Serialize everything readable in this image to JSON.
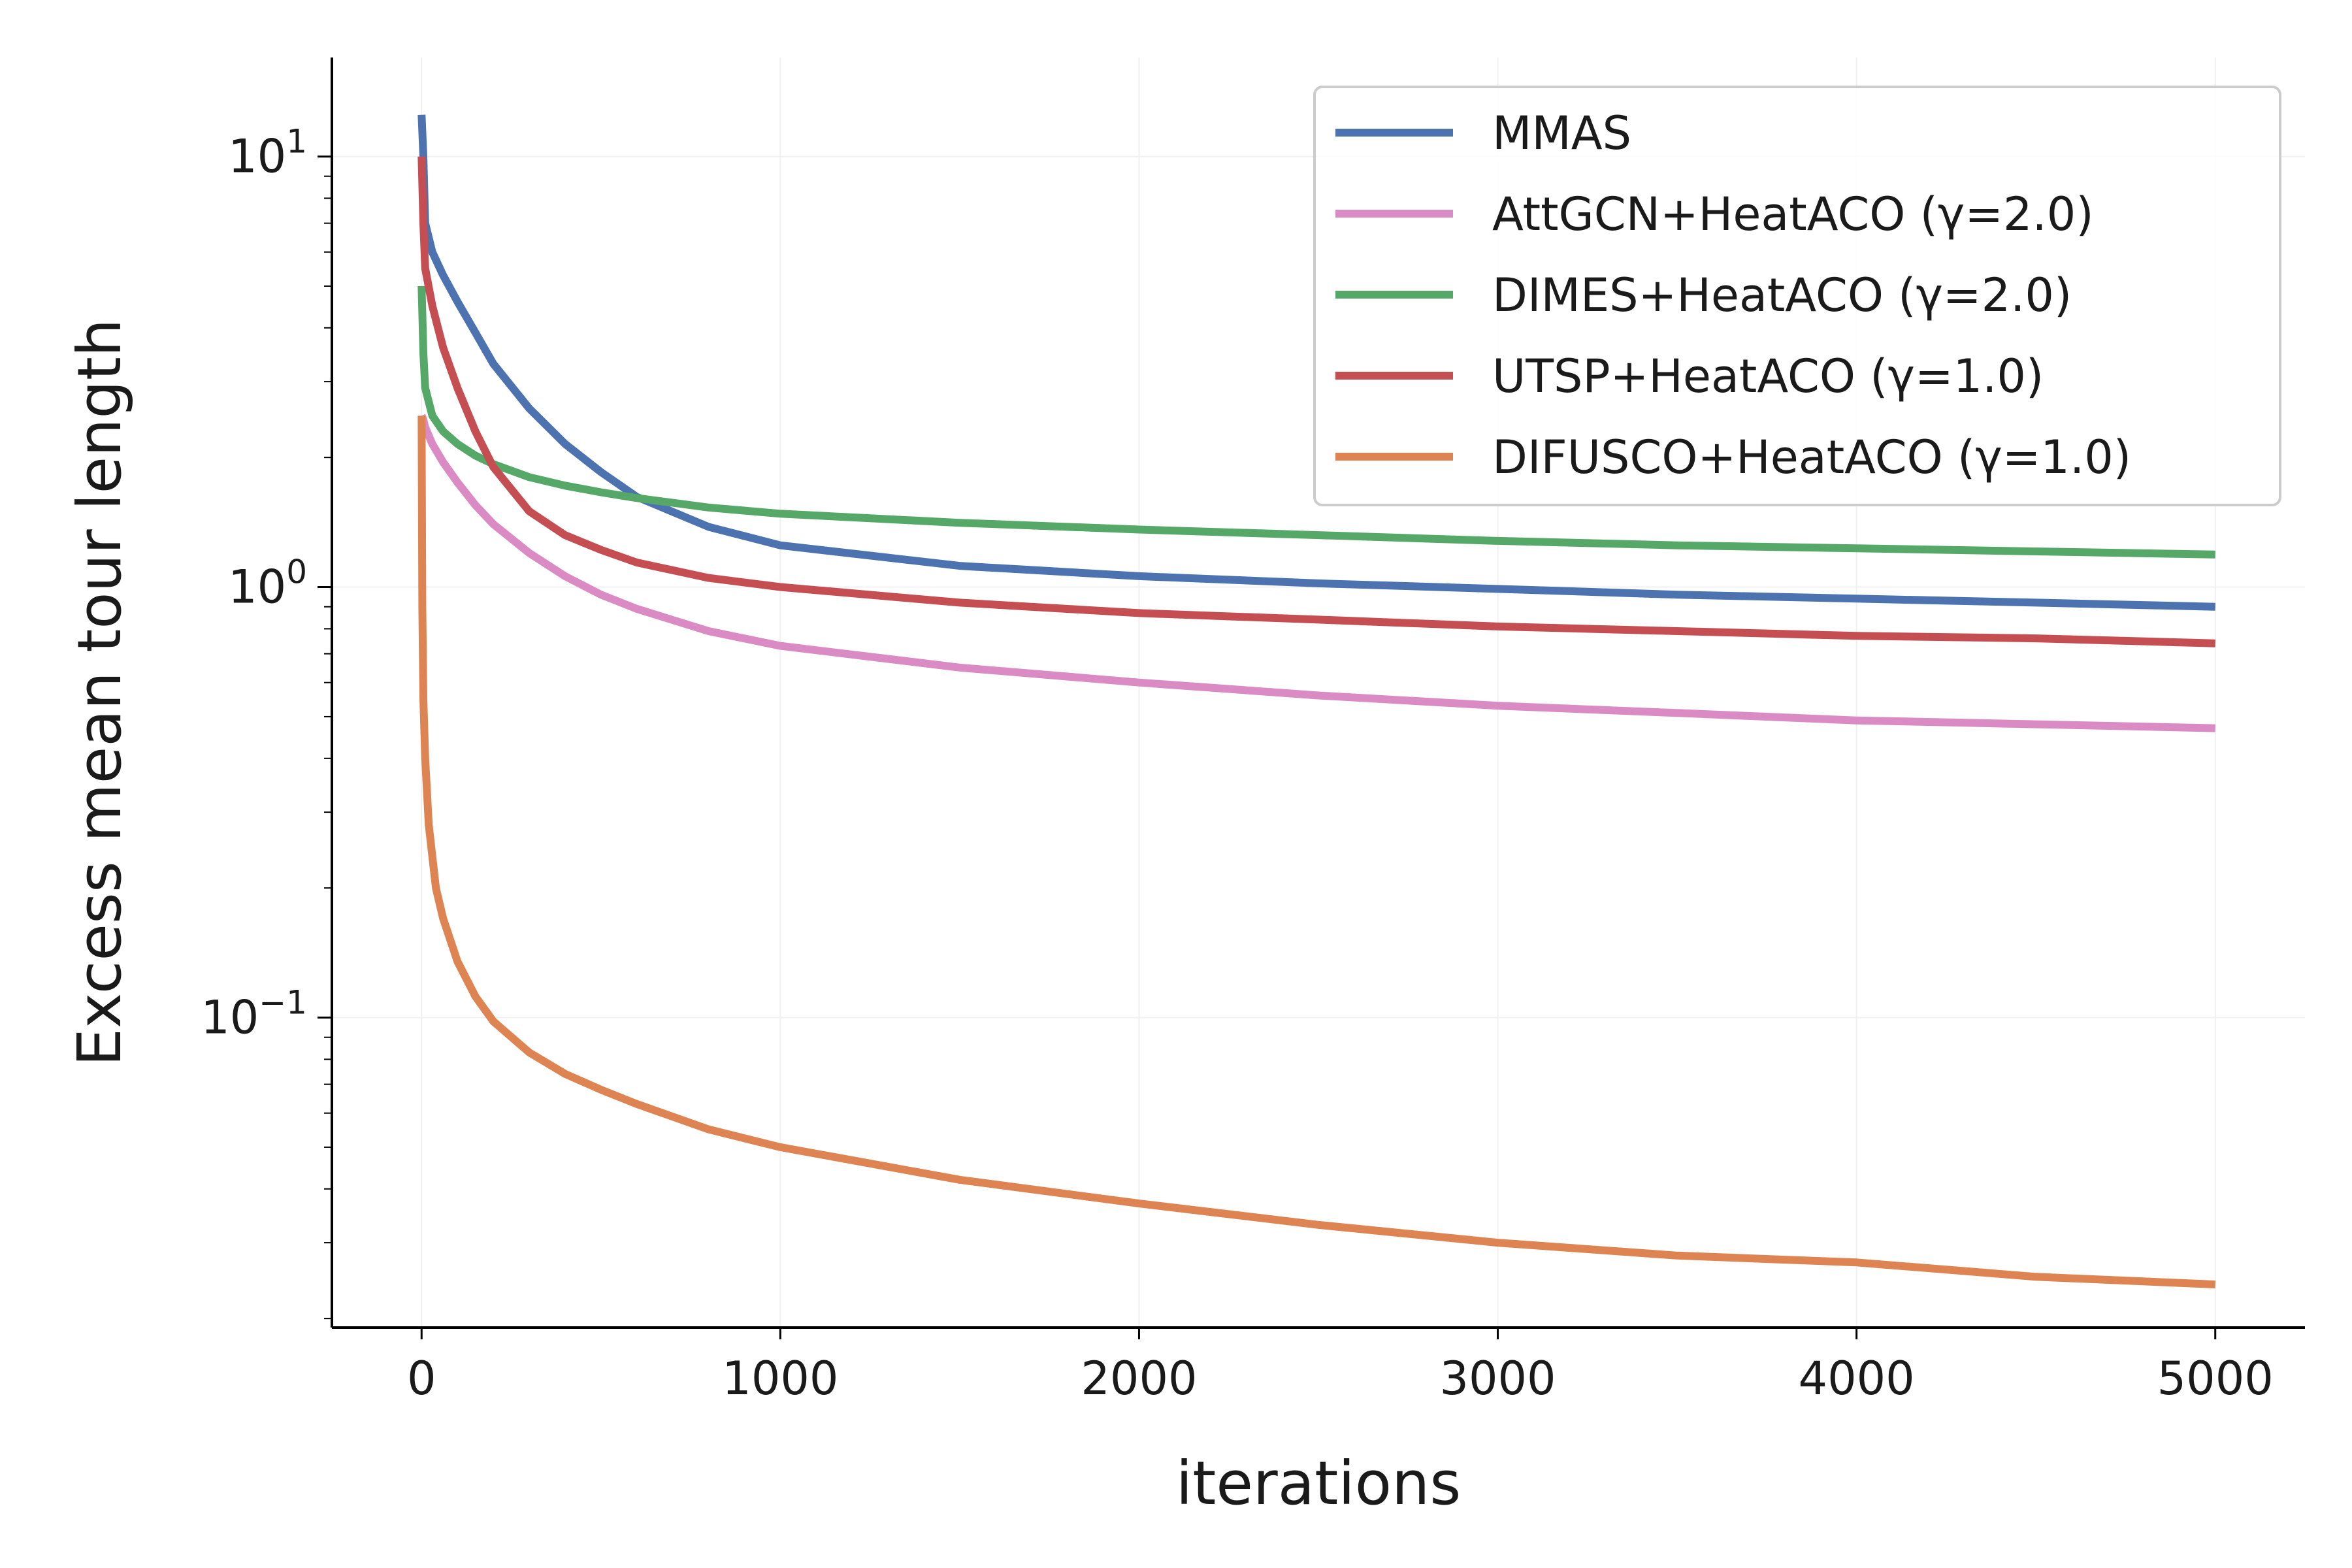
{
  "chart_data": {
    "type": "line",
    "title": "",
    "xlabel": "iterations",
    "ylabel": "Excess mean tour length",
    "xlim": [
      -250,
      5250
    ],
    "ylim_log10": [
      -1.72,
      1.23
    ],
    "yscale": "log",
    "x_ticks": [
      0,
      1000,
      2000,
      3000,
      4000,
      5000
    ],
    "x_tick_labels": [
      "0",
      "1000",
      "2000",
      "3000",
      "4000",
      "5000"
    ],
    "y_ticks": [
      {
        "exp": 1,
        "base": "10",
        "sup": "1"
      },
      {
        "exp": 0,
        "base": "10",
        "sup": "0"
      },
      {
        "exp": -1,
        "base": "10",
        "sup": "−1"
      }
    ],
    "grid": true,
    "legend_position": "top-right",
    "series": [
      {
        "name": "MMAS",
        "color": "#4c72b0",
        "x": [
          0,
          5,
          10,
          30,
          60,
          100,
          150,
          200,
          300,
          400,
          500,
          600,
          800,
          1000,
          1500,
          2000,
          2500,
          3000,
          3500,
          4000,
          4500,
          5000
        ],
        "y": [
          12.5,
          10.0,
          7.0,
          6.0,
          5.3,
          4.6,
          3.9,
          3.3,
          2.6,
          2.15,
          1.85,
          1.62,
          1.38,
          1.25,
          1.12,
          1.06,
          1.02,
          0.99,
          0.96,
          0.94,
          0.92,
          0.9
        ]
      },
      {
        "name": "AttGCN+HeatACO (γ=2.0)",
        "color": "#da8bc3",
        "x": [
          0,
          5,
          10,
          30,
          60,
          100,
          150,
          200,
          300,
          400,
          500,
          600,
          800,
          1000,
          1500,
          2000,
          2500,
          3000,
          3500,
          4000,
          4500,
          5000
        ],
        "y": [
          2.5,
          2.45,
          2.35,
          2.15,
          1.95,
          1.75,
          1.55,
          1.4,
          1.2,
          1.06,
          0.96,
          0.89,
          0.79,
          0.73,
          0.65,
          0.6,
          0.56,
          0.53,
          0.51,
          0.49,
          0.48,
          0.47
        ]
      },
      {
        "name": "DIMES+HeatACO (γ=2.0)",
        "color": "#55a868",
        "x": [
          0,
          5,
          10,
          30,
          60,
          100,
          150,
          200,
          300,
          400,
          500,
          600,
          800,
          1000,
          1500,
          2000,
          2500,
          3000,
          3500,
          4000,
          4500,
          5000
        ],
        "y": [
          5.0,
          3.5,
          2.9,
          2.5,
          2.3,
          2.15,
          2.02,
          1.93,
          1.8,
          1.72,
          1.66,
          1.61,
          1.53,
          1.48,
          1.41,
          1.36,
          1.32,
          1.28,
          1.25,
          1.23,
          1.21,
          1.19
        ]
      },
      {
        "name": "UTSP+HeatACO (γ=1.0)",
        "color": "#c44e52",
        "x": [
          0,
          5,
          10,
          30,
          60,
          100,
          150,
          200,
          300,
          400,
          500,
          600,
          800,
          1000,
          1500,
          2000,
          2500,
          3000,
          3500,
          4000,
          4500,
          5000
        ],
        "y": [
          10.0,
          7.0,
          5.5,
          4.5,
          3.6,
          2.9,
          2.3,
          1.9,
          1.5,
          1.32,
          1.22,
          1.14,
          1.05,
          1.0,
          0.92,
          0.87,
          0.84,
          0.81,
          0.79,
          0.77,
          0.76,
          0.74
        ]
      },
      {
        "name": "DIFUSCO+HeatACO (γ=1.0)",
        "color": "#dd8452",
        "x": [
          0,
          2,
          5,
          10,
          20,
          40,
          60,
          100,
          150,
          200,
          300,
          400,
          500,
          600,
          800,
          1000,
          1500,
          2000,
          2500,
          3000,
          3500,
          4000,
          4500,
          5000
        ],
        "y": [
          2.5,
          0.9,
          0.55,
          0.4,
          0.28,
          0.2,
          0.17,
          0.135,
          0.112,
          0.098,
          0.083,
          0.074,
          0.068,
          0.063,
          0.055,
          0.05,
          0.042,
          0.037,
          0.033,
          0.03,
          0.028,
          0.027,
          0.025,
          0.024
        ]
      }
    ]
  }
}
